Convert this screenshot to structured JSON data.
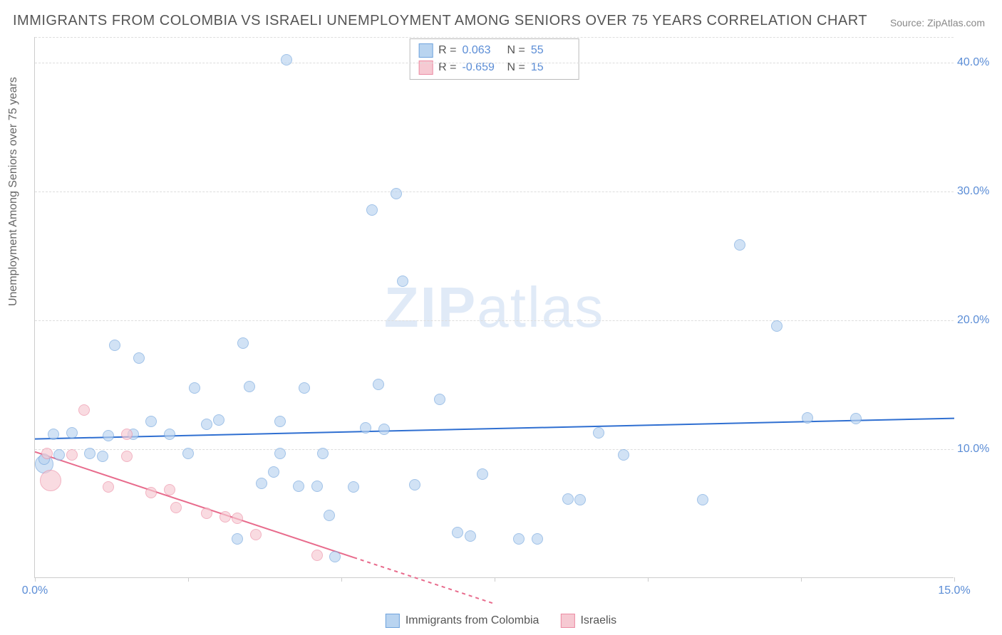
{
  "title": "IMMIGRANTS FROM COLOMBIA VS ISRAELI UNEMPLOYMENT AMONG SENIORS OVER 75 YEARS CORRELATION CHART",
  "source": "Source: ZipAtlas.com",
  "watermark_a": "ZIP",
  "watermark_b": "atlas",
  "ylabel": "Unemployment Among Seniors over 75 years",
  "chart": {
    "type": "scatter",
    "xlim": [
      0,
      15
    ],
    "ylim": [
      0,
      42
    ],
    "xticks": [
      0,
      2.5,
      5,
      7.5,
      10,
      12.5,
      15
    ],
    "xticks_labeled": [
      {
        "v": 0,
        "label": "0.0%"
      },
      {
        "v": 15,
        "label": "15.0%"
      }
    ],
    "yticks": [
      {
        "v": 10,
        "label": "10.0%"
      },
      {
        "v": 20,
        "label": "20.0%"
      },
      {
        "v": 30,
        "label": "30.0%"
      },
      {
        "v": 40,
        "label": "40.0%"
      }
    ],
    "grid_color": "#dddddd",
    "background_color": "#ffffff",
    "marker_border_width": 1.5,
    "series": [
      {
        "name": "Immigrants from Colombia",
        "color_fill": "#b9d4f0",
        "color_stroke": "#6fa3dd",
        "marker_size": 16,
        "r_value": "0.063",
        "n_value": "55",
        "trend": {
          "x1": 0,
          "y1": 10.8,
          "x2": 15,
          "y2": 12.4,
          "color": "#2f6fd1",
          "width": 2
        },
        "points": [
          {
            "x": 0.15,
            "y": 8.8,
            "s": 26
          },
          {
            "x": 0.15,
            "y": 9.2
          },
          {
            "x": 0.3,
            "y": 11.1
          },
          {
            "x": 0.4,
            "y": 9.5
          },
          {
            "x": 0.6,
            "y": 11.2
          },
          {
            "x": 0.9,
            "y": 9.6
          },
          {
            "x": 1.1,
            "y": 9.4
          },
          {
            "x": 1.2,
            "y": 11.0
          },
          {
            "x": 1.3,
            "y": 18.0
          },
          {
            "x": 1.6,
            "y": 11.1
          },
          {
            "x": 1.7,
            "y": 17.0
          },
          {
            "x": 1.9,
            "y": 12.1
          },
          {
            "x": 2.2,
            "y": 11.1
          },
          {
            "x": 2.5,
            "y": 9.6
          },
          {
            "x": 2.6,
            "y": 14.7
          },
          {
            "x": 2.8,
            "y": 11.9
          },
          {
            "x": 3.0,
            "y": 12.2
          },
          {
            "x": 3.3,
            "y": 3.0
          },
          {
            "x": 3.4,
            "y": 18.2
          },
          {
            "x": 3.5,
            "y": 14.8
          },
          {
            "x": 3.7,
            "y": 7.3
          },
          {
            "x": 3.9,
            "y": 8.2
          },
          {
            "x": 4.0,
            "y": 9.6
          },
          {
            "x": 4.0,
            "y": 12.1
          },
          {
            "x": 4.1,
            "y": 40.2
          },
          {
            "x": 4.3,
            "y": 7.1
          },
          {
            "x": 4.4,
            "y": 14.7
          },
          {
            "x": 4.6,
            "y": 7.1
          },
          {
            "x": 4.7,
            "y": 9.6
          },
          {
            "x": 4.8,
            "y": 4.8
          },
          {
            "x": 4.9,
            "y": 1.6
          },
          {
            "x": 5.2,
            "y": 7.0
          },
          {
            "x": 5.4,
            "y": 11.6
          },
          {
            "x": 5.5,
            "y": 28.5
          },
          {
            "x": 5.6,
            "y": 15.0
          },
          {
            "x": 5.7,
            "y": 11.5
          },
          {
            "x": 5.9,
            "y": 29.8
          },
          {
            "x": 6.0,
            "y": 23.0
          },
          {
            "x": 6.2,
            "y": 7.2
          },
          {
            "x": 6.6,
            "y": 13.8
          },
          {
            "x": 6.9,
            "y": 3.5
          },
          {
            "x": 7.1,
            "y": 3.2
          },
          {
            "x": 7.3,
            "y": 8.0
          },
          {
            "x": 7.9,
            "y": 3.0
          },
          {
            "x": 8.2,
            "y": 3.0
          },
          {
            "x": 8.7,
            "y": 6.1
          },
          {
            "x": 8.9,
            "y": 6.0
          },
          {
            "x": 9.2,
            "y": 11.2
          },
          {
            "x": 9.6,
            "y": 9.5
          },
          {
            "x": 10.9,
            "y": 6.0
          },
          {
            "x": 11.5,
            "y": 25.8
          },
          {
            "x": 12.1,
            "y": 19.5
          },
          {
            "x": 12.6,
            "y": 12.4
          },
          {
            "x": 13.4,
            "y": 12.3
          }
        ]
      },
      {
        "name": "Israelis",
        "color_fill": "#f6c9d2",
        "color_stroke": "#ec8ba3",
        "marker_size": 16,
        "r_value": "-0.659",
        "n_value": "15",
        "trend": {
          "x1": 0,
          "y1": 9.8,
          "x2": 5.2,
          "y2": 1.6,
          "color": "#e86b8c",
          "width": 2,
          "dash_ext_x2": 7.5,
          "dash_ext_y2": -2.0
        },
        "points": [
          {
            "x": 0.2,
            "y": 9.6
          },
          {
            "x": 0.25,
            "y": 7.5,
            "s": 30
          },
          {
            "x": 0.6,
            "y": 9.5
          },
          {
            "x": 0.8,
            "y": 13.0
          },
          {
            "x": 1.2,
            "y": 7.0
          },
          {
            "x": 1.5,
            "y": 11.1
          },
          {
            "x": 1.5,
            "y": 9.4
          },
          {
            "x": 1.9,
            "y": 6.6
          },
          {
            "x": 2.2,
            "y": 6.8
          },
          {
            "x": 2.3,
            "y": 5.4
          },
          {
            "x": 2.8,
            "y": 5.0
          },
          {
            "x": 3.1,
            "y": 4.7
          },
          {
            "x": 3.3,
            "y": 4.6
          },
          {
            "x": 3.6,
            "y": 3.3
          },
          {
            "x": 4.6,
            "y": 1.7
          }
        ]
      }
    ]
  },
  "legend": {
    "items": [
      {
        "label": "Immigrants from Colombia",
        "fill": "#b9d4f0",
        "stroke": "#6fa3dd"
      },
      {
        "label": "Israelis",
        "fill": "#f6c9d2",
        "stroke": "#ec8ba3"
      }
    ]
  }
}
